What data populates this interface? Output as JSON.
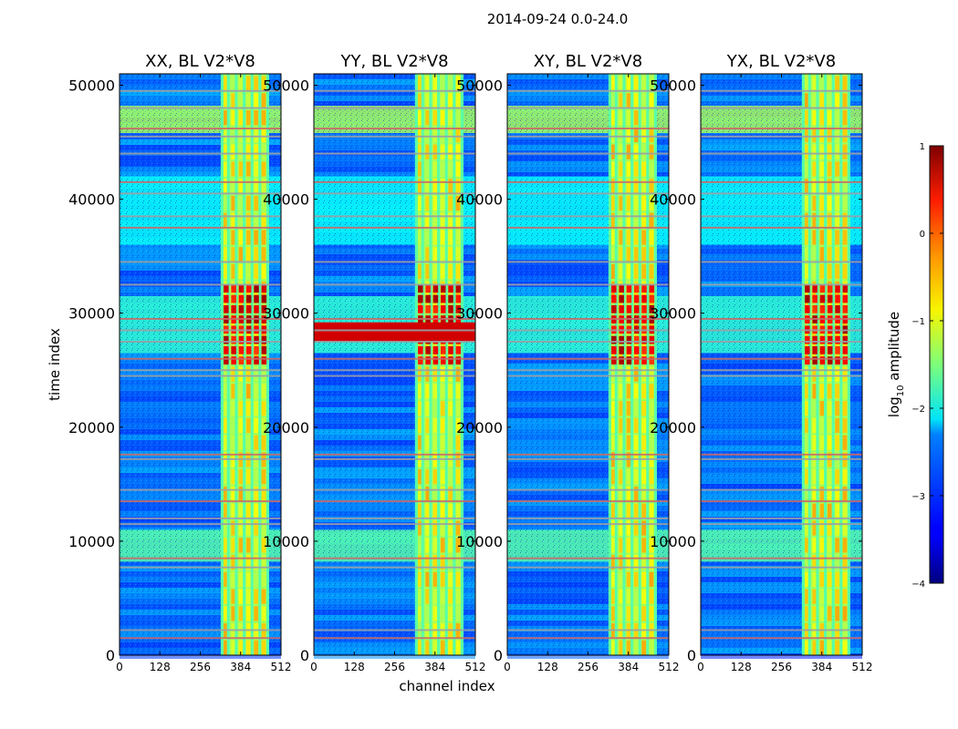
{
  "figure": {
    "title": "2014-09-24 0.0-24.0"
  },
  "chart_data": {
    "type": "heatmap",
    "title": "2014-09-24 0.0-24.0",
    "xlabel": "channel index",
    "ylabel": "time index",
    "xlim": [
      0,
      512
    ],
    "ylim": [
      0,
      51000
    ],
    "x_ticks": [
      "0",
      "128",
      "256",
      "384",
      "512"
    ],
    "y_ticks": [
      "0",
      "10000",
      "20000",
      "30000",
      "40000",
      "50000"
    ],
    "panels": [
      {
        "title": "XX, BL V2*V8",
        "strong_flare_rows": false,
        "strong_rows_full_width": false
      },
      {
        "title": "YY, BL V2*V8",
        "strong_flare_rows": true,
        "strong_rows_full_width": true
      },
      {
        "title": "XY, BL V2*V8",
        "strong_flare_rows": true,
        "strong_rows_full_width": false
      },
      {
        "title": "YX, BL V2*V8",
        "strong_flare_rows": true,
        "strong_rows_full_width": false
      }
    ],
    "colorbar": {
      "label": "log10 amplitude",
      "label_main": "log",
      "label_sub": "10",
      "label_rest": " amplitude",
      "range": [
        -4,
        1
      ],
      "ticks": [
        "1",
        "0",
        "−1",
        "−2",
        "−3",
        "−4"
      ],
      "colormap": "jet"
    },
    "bright_channel_band": [
      325,
      470
    ],
    "bright_channel_stripes": [
      325,
      345,
      370,
      395,
      420,
      445,
      470
    ],
    "horizontal_flag_rows": [
      1500,
      2200,
      7700,
      8500,
      11500,
      12000,
      13500,
      14500,
      17200,
      17600,
      24500,
      25000,
      26000,
      27500,
      28500,
      29500,
      32500,
      34500,
      37500,
      38500,
      40500,
      41500,
      44000,
      45500,
      46200,
      48000,
      49500
    ],
    "bright_time_bands": [
      {
        "from": 45800,
        "to": 48200,
        "level": -1.3
      },
      {
        "from": 8200,
        "to": 11000,
        "level": -1.7
      },
      {
        "from": 26500,
        "to": 31500,
        "level": -1.9
      },
      {
        "from": 36000,
        "to": 42000,
        "level": -2.1
      }
    ]
  }
}
